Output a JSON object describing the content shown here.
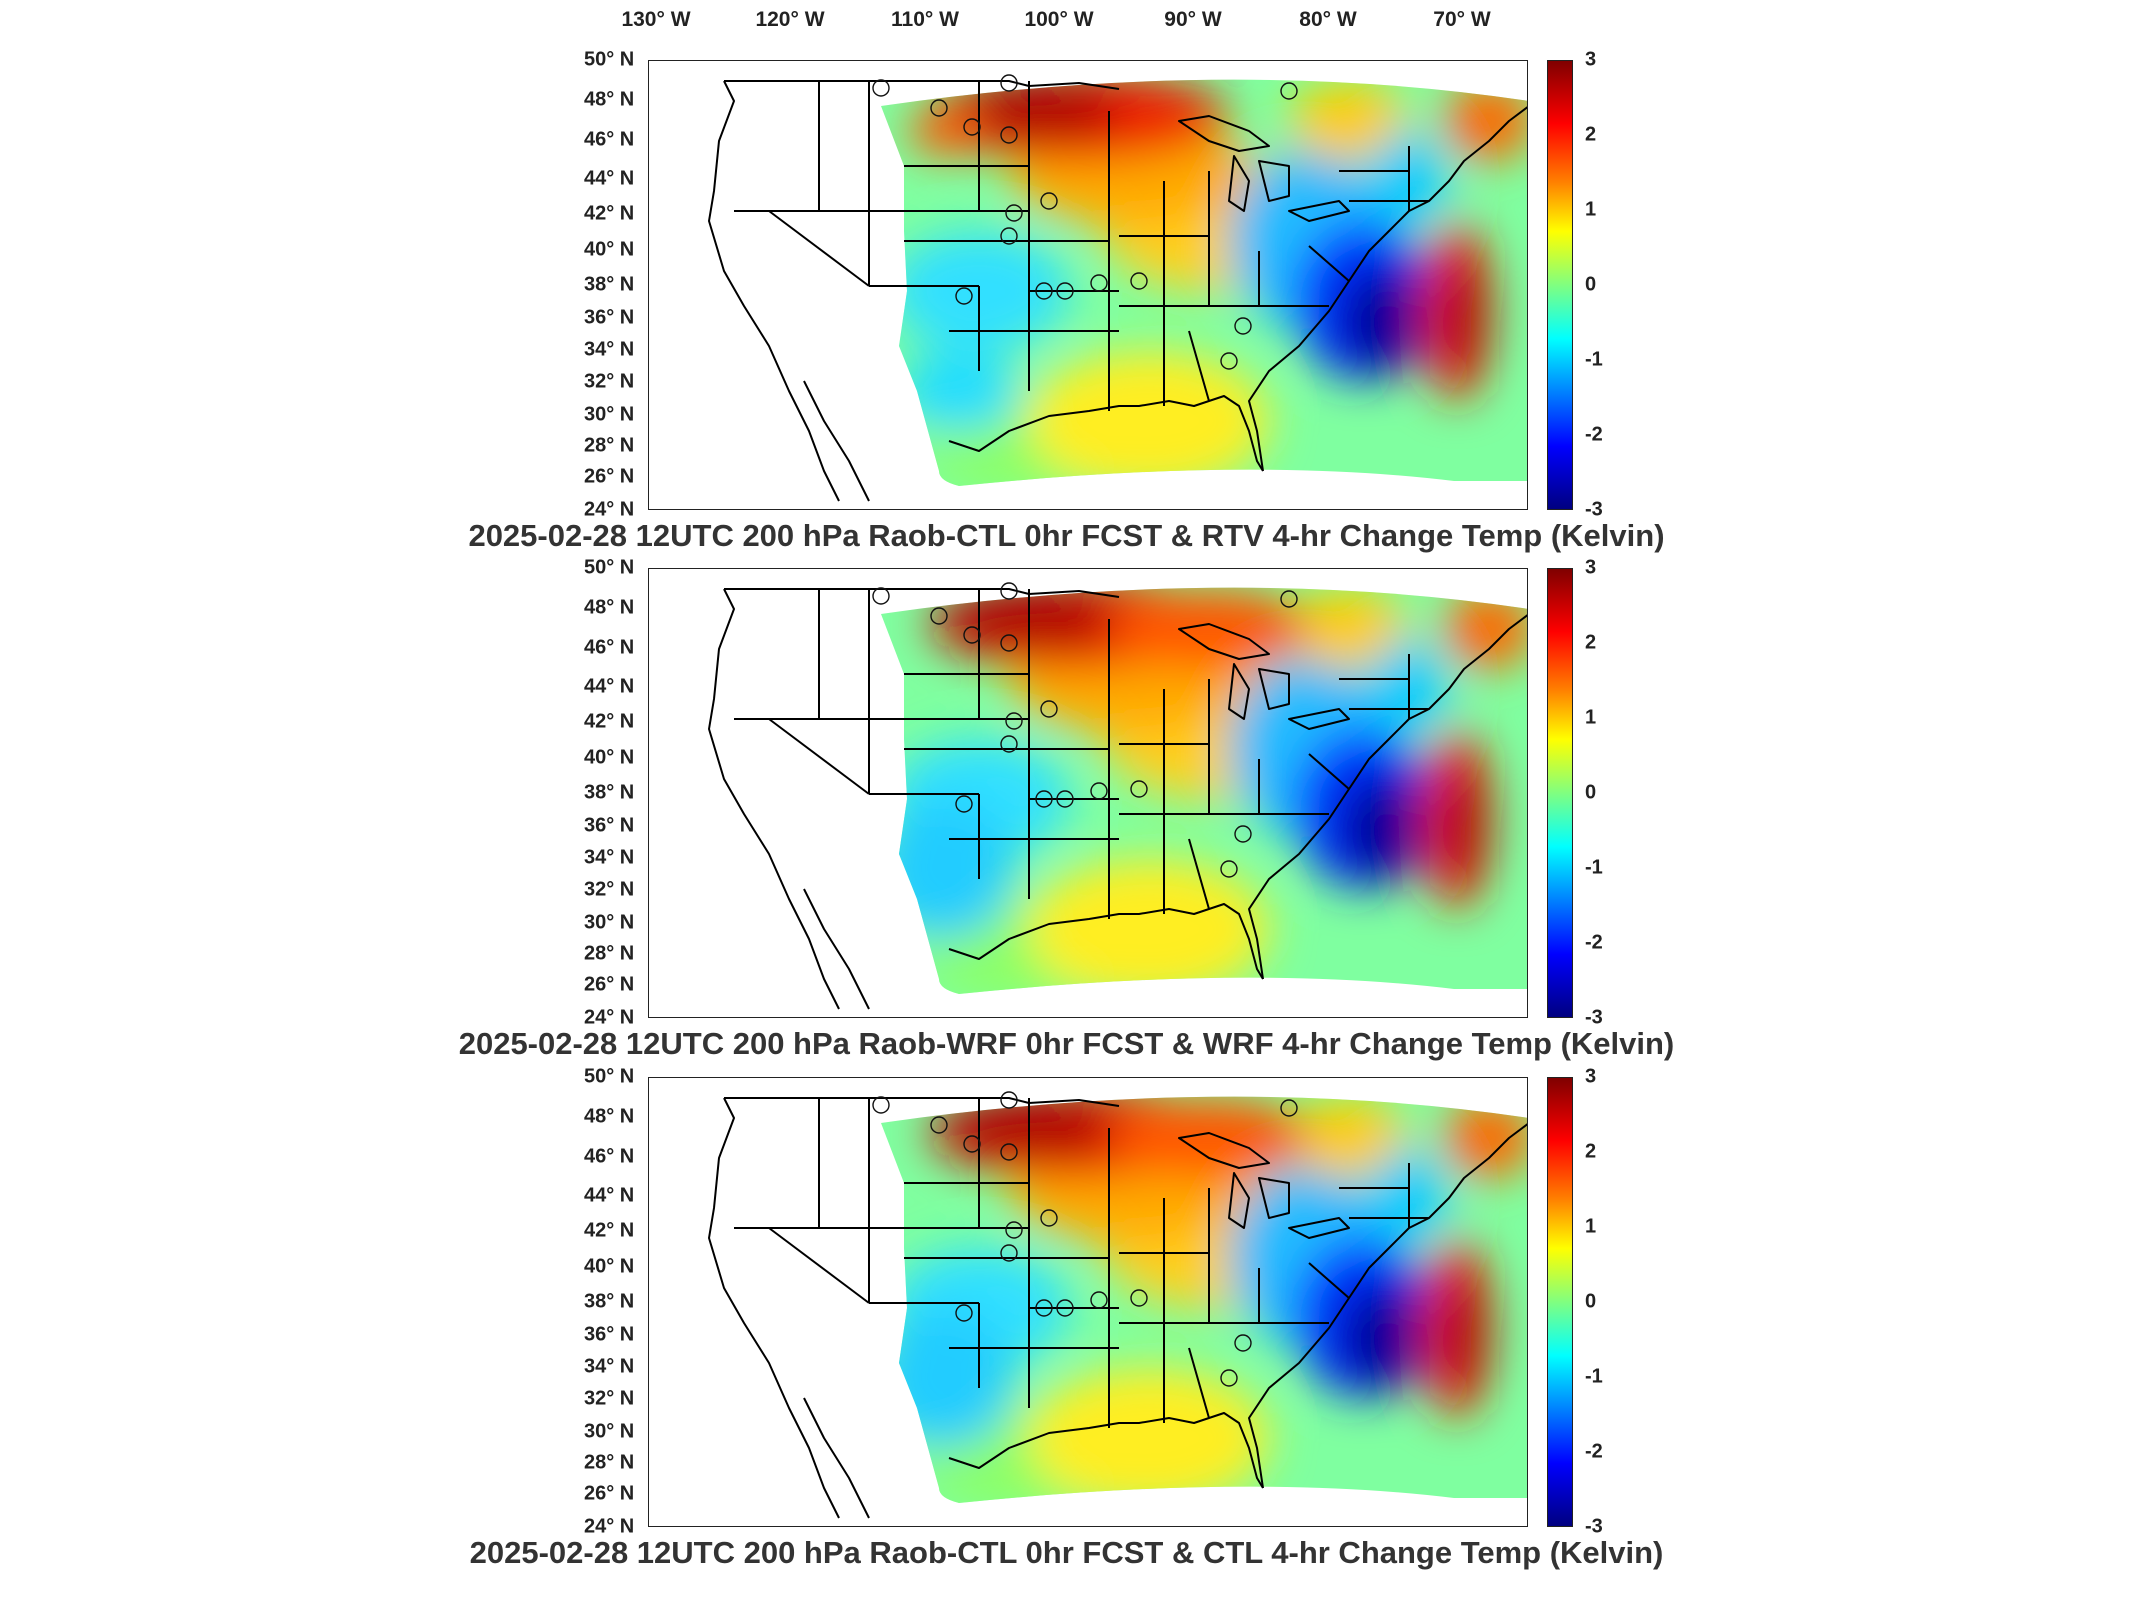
{
  "longitude_labels": [
    "130° W",
    "120° W",
    "110° W",
    "100° W",
    "90° W",
    "80° W",
    "70° W"
  ],
  "latitude_labels": [
    "50° N",
    "48° N",
    "46° N",
    "44° N",
    "42° N",
    "40° N",
    "38° N",
    "36° N",
    "34° N",
    "32° N",
    "30° N",
    "28° N",
    "26° N",
    "24° N"
  ],
  "colorbar": {
    "ticks": [
      "3",
      "2",
      "1",
      "0",
      "-1",
      "-2",
      "-3"
    ],
    "min": -3,
    "max": 3,
    "colors": [
      "#800000",
      "#ff0000",
      "#ff8000",
      "#ffff00",
      "#80ff80",
      "#00ffff",
      "#0080ff",
      "#0000ff",
      "#000080"
    ]
  },
  "panels": [
    {
      "title": "2025-02-28 12UTC 200 hPa Raob-CTL 0hr FCST & RTV 4-hr Change Temp (Kelvin)"
    },
    {
      "title": "2025-02-28 12UTC 200 hPa Raob-WRF 0hr FCST & WRF 4-hr Change Temp (Kelvin)"
    },
    {
      "title": "2025-02-28 12UTC 200 hPa Raob-CTL 0hr FCST & CTL 4-hr Change Temp (Kelvin)"
    }
  ]
}
